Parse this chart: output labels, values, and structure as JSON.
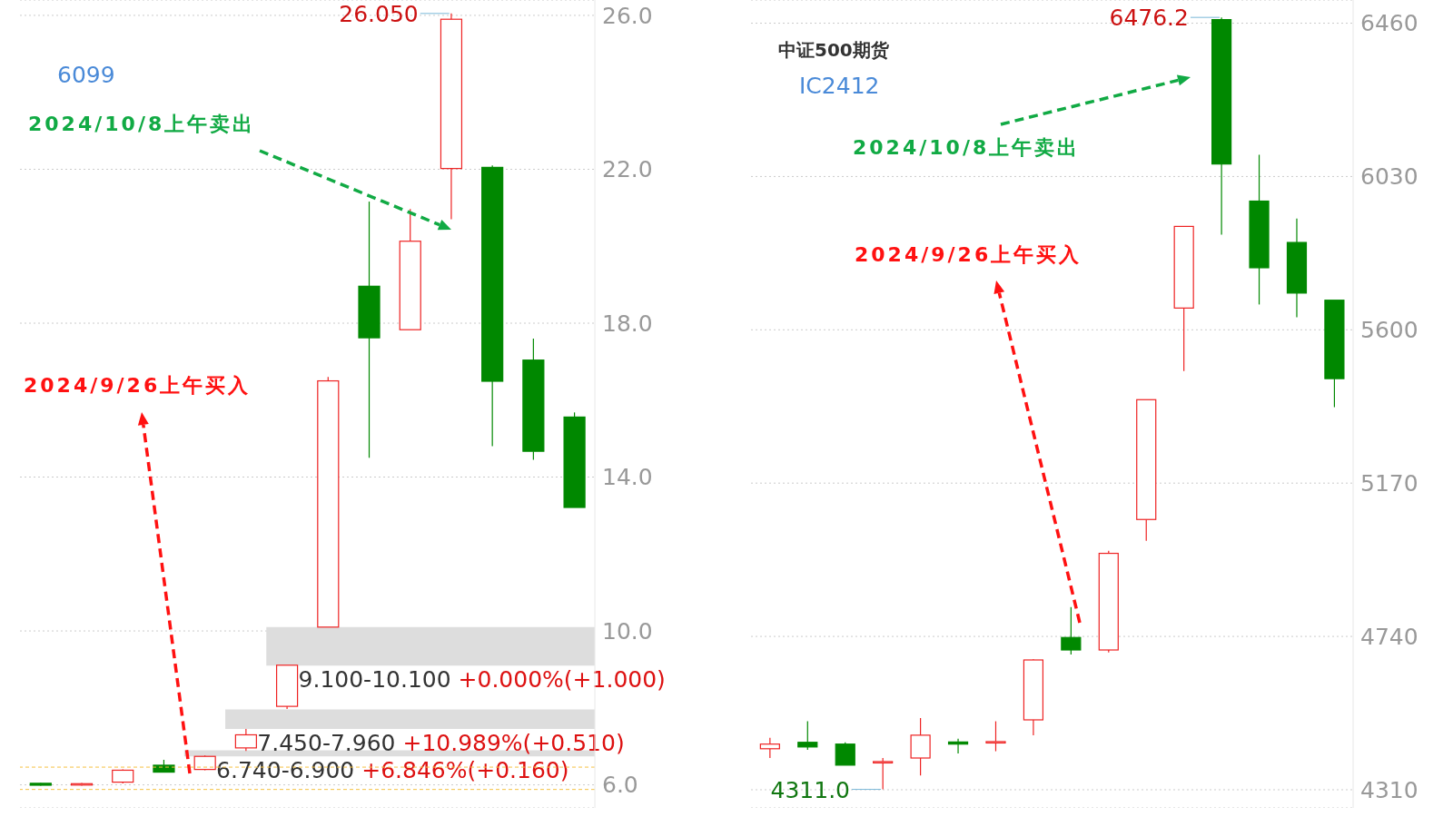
{
  "chart_data": [
    {
      "type": "candlestick",
      "subtitle": "6099",
      "categories": [
        null,
        null,
        null,
        null,
        null,
        null,
        null,
        null,
        null,
        null,
        null,
        null,
        null,
        null
      ],
      "ohlc": [
        [
          6.04,
          6.05,
          5.98,
          5.99
        ],
        [
          6.0,
          6.05,
          5.98,
          6.03
        ],
        [
          6.07,
          6.4,
          6.04,
          6.38
        ],
        [
          6.51,
          6.65,
          6.33,
          6.33
        ],
        [
          6.4,
          6.76,
          6.38,
          6.74
        ],
        [
          6.96,
          7.45,
          6.88,
          7.3
        ],
        [
          8.04,
          9.11,
          7.97,
          9.11
        ],
        [
          10.1,
          16.6,
          10.1,
          16.5
        ],
        [
          18.96,
          21.16,
          14.5,
          17.62
        ],
        [
          17.83,
          20.97,
          17.83,
          20.13
        ],
        [
          22.02,
          26.05,
          20.7,
          25.9
        ],
        [
          22.05,
          22.1,
          14.8,
          16.49
        ],
        [
          17.04,
          17.6,
          14.45,
          14.67
        ],
        [
          15.56,
          15.68,
          13.21,
          13.21
        ]
      ],
      "ylim": [
        5.4,
        26.4
      ],
      "yticks": [
        {
          "value": 6,
          "label": "6.0"
        },
        {
          "value": 10,
          "label": "10.0"
        },
        {
          "value": 14,
          "label": "14.0"
        },
        {
          "value": 18,
          "label": "18.0"
        },
        {
          "value": 22,
          "label": "22.0"
        },
        {
          "value": 26,
          "label": "26.0"
        }
      ],
      "grid": "y",
      "tick_labels": "y",
      "bands": [
        {
          "axis": "y",
          "from": 6.74,
          "to": 6.9,
          "label": "6.740-6.900 +6.846%(+0.160)",
          "color": "#dddddd"
        },
        {
          "axis": "y",
          "from": 7.45,
          "to": 7.96,
          "label": "7.450-7.960 +10.989%(+0.510)",
          "color": "#dddddd"
        },
        {
          "axis": "y",
          "from": 9.1,
          "to": 10.1,
          "label": "9.100-10.100 +0.000%(+1.000)",
          "color": "#dddddd"
        }
      ],
      "ref_lines": [
        {
          "axis": "y",
          "value": 6.46,
          "color": "#f5c242",
          "line_style": "dashed"
        },
        {
          "axis": "y",
          "value": 5.88,
          "color": "#f5c242",
          "line_style": "dashed"
        }
      ],
      "annotations": [
        "26.050",
        "2024/10/8上午卖出",
        "2024/9/26上午买入"
      ]
    },
    {
      "type": "candlestick",
      "title": "中证500期货",
      "subtitle": "IC2412",
      "categories": [
        null,
        null,
        null,
        null,
        null,
        null,
        null,
        null,
        null,
        null,
        null,
        null,
        null,
        null,
        null,
        null
      ],
      "ohlc": [
        [
          4425,
          4456,
          4399,
          4438
        ],
        [
          4443,
          4502,
          4422,
          4430
        ],
        [
          4438,
          4443,
          4379,
          4379
        ],
        [
          4388,
          4399,
          4311,
          4389
        ],
        [
          4399,
          4511,
          4350,
          4463
        ],
        [
          4444,
          4453,
          4412,
          4438
        ],
        [
          4443,
          4502,
          4418,
          4445
        ],
        [
          4506,
          4676,
          4463,
          4674
        ],
        [
          4737,
          4822,
          4689,
          4702
        ],
        [
          4702,
          4980,
          4695,
          4973
        ],
        [
          5068,
          5404,
          5008,
          5404
        ],
        [
          5661,
          5890,
          5484,
          5890
        ],
        [
          6470,
          6476.2,
          5867,
          6065
        ],
        [
          5961,
          6091,
          5671,
          5774
        ],
        [
          5845,
          5912,
          5635,
          5703
        ],
        [
          5683,
          5683,
          5383,
          5463
        ]
      ],
      "ylim": [
        4259,
        6525
      ],
      "yticks": [
        4310,
        4740,
        5170,
        5600,
        6030,
        6460
      ],
      "grid": "y",
      "tick_labels": "y",
      "annotations": [
        "6476.2",
        "4311.0",
        "2024/10/8上午卖出",
        "2024/9/26上午买入"
      ]
    }
  ]
}
